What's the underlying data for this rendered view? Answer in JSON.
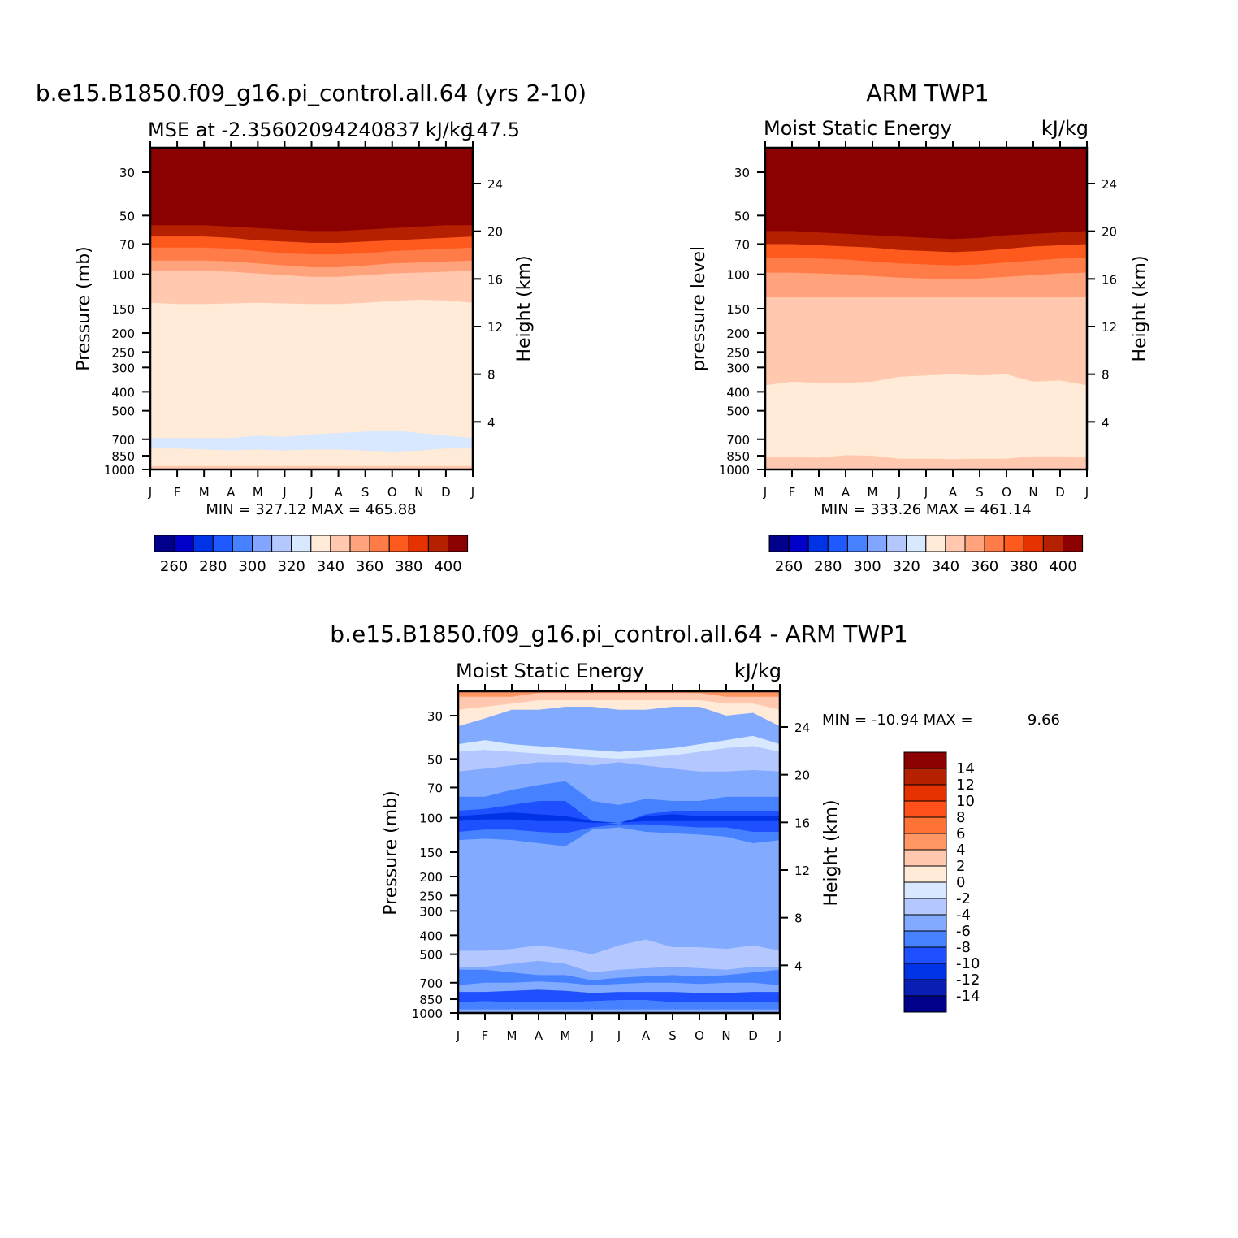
{
  "colors": {
    "mse_levels": [
      "#00008b",
      "#0000c8",
      "#0032e6",
      "#1e5aff",
      "#4682ff",
      "#82a5ff",
      "#b4c8ff",
      "#d7e8ff",
      "#ffebd7",
      "#ffc8af",
      "#ffa37d",
      "#ff7c48",
      "#ff5a1e",
      "#e63200",
      "#b42000",
      "#8b0000"
    ],
    "diff_levels": [
      "#00008b",
      "#0a1eb4",
      "#0032e6",
      "#1e50ff",
      "#4682ff",
      "#82aaff",
      "#b4c8ff",
      "#d7e8ff",
      "#ffebd7",
      "#ffc8af",
      "#ff9664",
      "#ff7337",
      "#ff5019",
      "#e63200",
      "#b42000",
      "#8b0000"
    ]
  },
  "chart_data": [
    {
      "id": "model",
      "type": "contour",
      "suptitle": "b.e15.B1850.f09_g16.pi_control.all.64 (yrs 2-10)",
      "left_title": "MSE at -2.35602094240837",
      "right_title": "kJ/kg",
      "extra_title": "147.5",
      "ylabel": "Pressure (mb)",
      "ylabel_right": "Height (km)",
      "x_ticks": [
        "J",
        "F",
        "M",
        "A",
        "M",
        "J",
        "J",
        "A",
        "S",
        "O",
        "N",
        "D",
        "J"
      ],
      "p_ticks": [
        "30",
        "50",
        "70",
        "100",
        "150",
        "200",
        "250",
        "300",
        "400",
        "500",
        "700",
        "850",
        "1000"
      ],
      "z_ticks": [
        "24",
        "20",
        "16",
        "12",
        "8",
        "4"
      ],
      "minmax": "MIN = 327.12 MAX = 465.88",
      "units": "kJ/kg",
      "levels_labels": [
        "260",
        "280",
        "300",
        "320",
        "340",
        "360",
        "380",
        "400"
      ],
      "contour_levels": [
        250,
        260,
        270,
        280,
        290,
        300,
        310,
        320,
        330,
        340,
        350,
        360,
        370,
        380,
        390,
        400
      ],
      "band_boundaries_mb": {
        "dark_top": [
          56,
          56,
          56,
          57,
          58,
          59,
          60,
          60,
          59,
          58,
          57,
          56,
          56
        ],
        "level_390": [
          64,
          64,
          64,
          65,
          67,
          68,
          69,
          69,
          68,
          67,
          66,
          65,
          64
        ],
        "level_380": [
          73,
          73,
          73,
          74,
          76,
          78,
          79,
          79,
          78,
          76,
          75,
          74,
          73
        ],
        "level_370": [
          85,
          85,
          85,
          86,
          88,
          90,
          92,
          92,
          90,
          88,
          87,
          86,
          85
        ],
        "level_360": [
          96,
          96,
          96,
          97,
          99,
          101,
          103,
          103,
          101,
          99,
          98,
          97,
          96
        ],
        "level_350": [
          140,
          142,
          142,
          141,
          140,
          141,
          142,
          142,
          140,
          137,
          135,
          136,
          140
        ],
        "level_330_upper": [
          690,
          690,
          690,
          690,
          670,
          680,
          660,
          650,
          640,
          630,
          650,
          670,
          690
        ],
        "level_330_lower": [
          780,
          780,
          790,
          800,
          790,
          800,
          790,
          790,
          800,
          810,
          800,
          780,
          780
        ]
      }
    },
    {
      "id": "obs",
      "type": "contour",
      "suptitle": "ARM TWP1",
      "left_title": "Moist Static Energy",
      "right_title": "kJ/kg",
      "ylabel": "pressure level",
      "ylabel_right": "Height (km)",
      "x_ticks": [
        "J",
        "F",
        "M",
        "A",
        "M",
        "J",
        "J",
        "A",
        "S",
        "O",
        "N",
        "D",
        "J"
      ],
      "p_ticks": [
        "30",
        "50",
        "70",
        "100",
        "150",
        "200",
        "250",
        "300",
        "400",
        "500",
        "700",
        "850",
        "1000"
      ],
      "z_ticks": [
        "24",
        "20",
        "16",
        "12",
        "8",
        "4"
      ],
      "minmax": "MIN = 333.26 MAX = 461.14",
      "units": "kJ/kg",
      "levels_labels": [
        "260",
        "280",
        "300",
        "320",
        "340",
        "360",
        "380",
        "400"
      ],
      "contour_levels": [
        250,
        260,
        270,
        280,
        290,
        300,
        310,
        320,
        330,
        340,
        350,
        360,
        370,
        380,
        390,
        400
      ],
      "band_boundaries_mb": {
        "dark_top": [
          60,
          60,
          61,
          62,
          63,
          64,
          65,
          66,
          65,
          63,
          62,
          61,
          60
        ],
        "level_390": [
          70,
          70,
          71,
          72,
          73,
          75,
          76,
          77,
          76,
          74,
          72,
          71,
          70
        ],
        "level_380": [
          82,
          82,
          83,
          84,
          86,
          88,
          89,
          90,
          89,
          87,
          85,
          83,
          82
        ],
        "level_370": [
          98,
          98,
          99,
          100,
          102,
          104,
          105,
          106,
          105,
          103,
          101,
          99,
          98
        ],
        "level_360": [
          130,
          130,
          130,
          130,
          130,
          130,
          130,
          130,
          130,
          130,
          130,
          130,
          130
        ],
        "level_350": [
          370,
          355,
          360,
          360,
          355,
          335,
          330,
          325,
          330,
          325,
          355,
          350,
          370
        ],
        "level_340": [
          860,
          860,
          870,
          845,
          850,
          880,
          880,
          885,
          880,
          880,
          855,
          855,
          860
        ]
      }
    },
    {
      "id": "diff",
      "type": "contour",
      "suptitle": "b.e15.B1850.f09_g16.pi_control.all.64 - ARM TWP1",
      "left_title": "Moist Static Energy",
      "right_title": "kJ/kg",
      "ylabel": "Pressure (mb)",
      "ylabel_right": "Height (km)",
      "x_ticks": [
        "J",
        "F",
        "M",
        "A",
        "M",
        "J",
        "J",
        "A",
        "S",
        "O",
        "N",
        "D",
        "J"
      ],
      "p_ticks": [
        "30",
        "50",
        "70",
        "100",
        "150",
        "200",
        "250",
        "300",
        "400",
        "500",
        "700",
        "850",
        "1000"
      ],
      "z_ticks": [
        "24",
        "20",
        "16",
        "12",
        "8",
        "4"
      ],
      "minmax_label": "MIN = -10.94 MAX =",
      "max_value": "9.66",
      "units": "kJ/kg",
      "levels_labels": [
        "14",
        "12",
        "10",
        "8",
        "6",
        "4",
        "2",
        "0",
        "-2",
        "-4",
        "-6",
        "-8",
        "-10",
        "-12",
        "-14"
      ],
      "contour_levels": [
        -14,
        -12,
        -10,
        -8,
        -6,
        -4,
        -2,
        0,
        2,
        4,
        6,
        8,
        10,
        12,
        14
      ]
    }
  ]
}
